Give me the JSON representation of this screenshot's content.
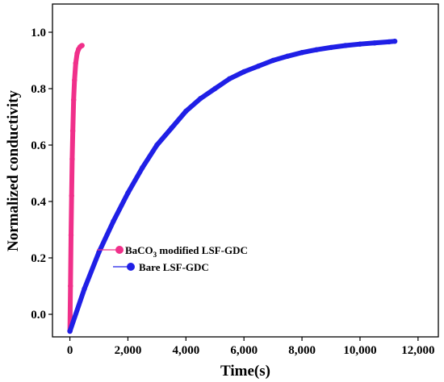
{
  "chart_data": {
    "type": "line",
    "xlabel": "Time(s)",
    "ylabel": "Normalized conductivity",
    "xlim": [
      -600,
      12700
    ],
    "ylim": [
      -0.08,
      1.1
    ],
    "x_ticks": [
      0,
      2000,
      4000,
      6000,
      8000,
      10000,
      12000
    ],
    "x_tick_labels": [
      "0",
      "2,000",
      "4,000",
      "6,000",
      "8,000",
      "10,000",
      "12,000"
    ],
    "y_ticks": [
      0.0,
      0.2,
      0.4,
      0.6,
      0.8,
      1.0
    ],
    "y_tick_labels": [
      "0.0",
      "0.2",
      "0.4",
      "0.6",
      "0.8",
      "1.0"
    ],
    "legend_position": "center-left",
    "series": [
      {
        "name_main": "BaCO",
        "name_sub": "3",
        "name_rest": " modified LSF-GDC",
        "color": "#f0308a",
        "x": [
          0,
          20,
          40,
          60,
          80,
          100,
          130,
          160,
          200,
          250,
          300,
          350,
          400,
          420
        ],
        "y": [
          -0.06,
          0.1,
          0.28,
          0.42,
          0.55,
          0.65,
          0.76,
          0.83,
          0.89,
          0.925,
          0.94,
          0.948,
          0.952,
          0.953
        ]
      },
      {
        "name": "Bare LSF-GDC",
        "color": "#1f1fe6",
        "x": [
          0,
          500,
          1000,
          1500,
          2000,
          2500,
          3000,
          3500,
          4000,
          4500,
          5000,
          5500,
          6000,
          6500,
          7000,
          7500,
          8000,
          8500,
          9000,
          9500,
          10000,
          10500,
          11000,
          11200
        ],
        "y": [
          -0.06,
          0.09,
          0.22,
          0.33,
          0.43,
          0.52,
          0.6,
          0.66,
          0.72,
          0.765,
          0.8,
          0.835,
          0.86,
          0.88,
          0.9,
          0.915,
          0.928,
          0.938,
          0.946,
          0.953,
          0.958,
          0.962,
          0.966,
          0.968
        ]
      }
    ]
  }
}
